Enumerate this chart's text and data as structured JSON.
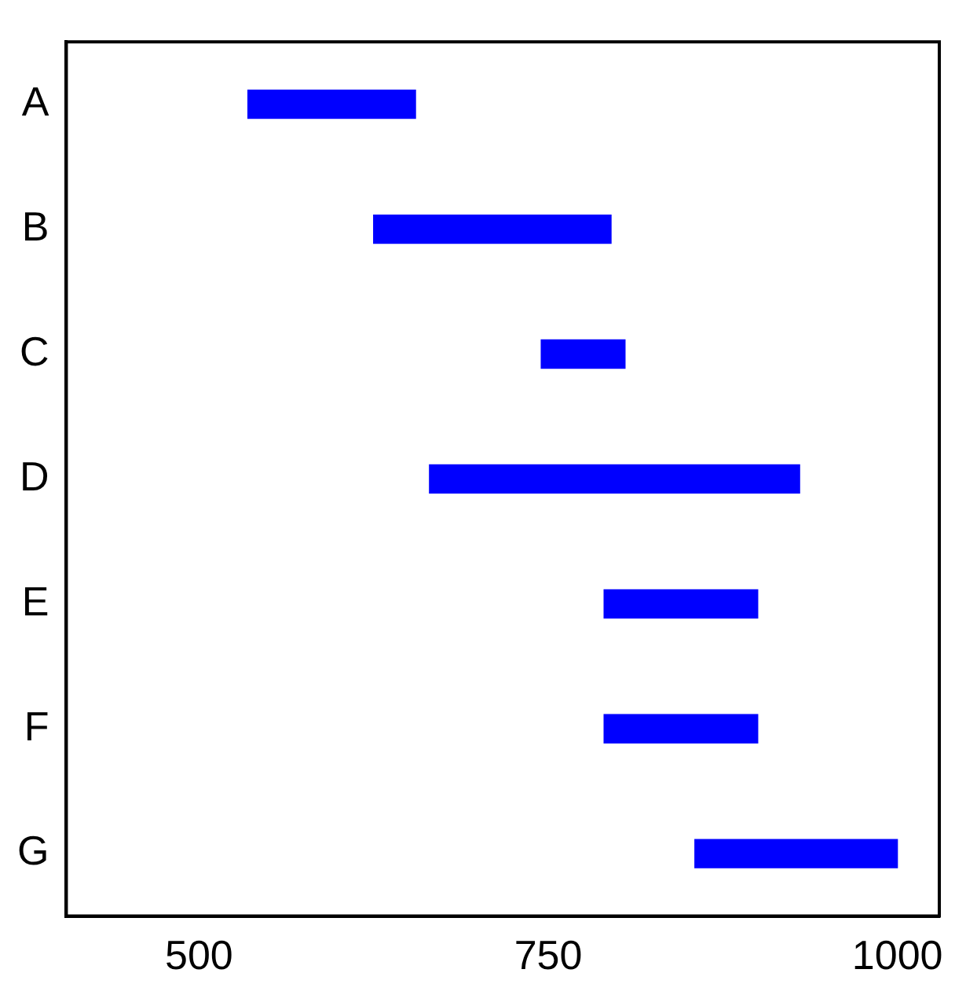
{
  "chart_data": {
    "type": "bar",
    "orientation": "horizontal",
    "categories": [
      "A",
      "B",
      "C",
      "D",
      "E",
      "F",
      "G"
    ],
    "base": [
      535,
      625,
      745,
      665,
      790,
      790,
      855
    ],
    "values": [
      120,
      170,
      60,
      265,
      110,
      110,
      145
    ],
    "color": "#0000ff",
    "xlim": [
      405,
      1030
    ],
    "xticks": [
      500,
      750,
      1000
    ],
    "grid": false,
    "legend": false
  }
}
